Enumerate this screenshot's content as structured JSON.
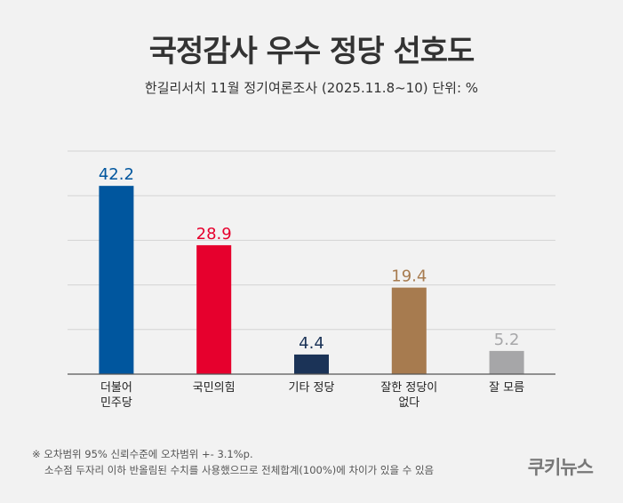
{
  "header": {
    "title": "국정감사 우수 정당 선호도",
    "subtitle": "한길리서치 11월 정기여론조사 (2025.11.8~10) 단위: %"
  },
  "chart_data": {
    "type": "bar",
    "categories": [
      [
        "더불어",
        "민주당"
      ],
      [
        "국민의힘"
      ],
      [
        "기타 정당"
      ],
      [
        "잘한 정당이",
        "없다"
      ],
      [
        "잘 모름"
      ]
    ],
    "values": [
      42.2,
      28.9,
      4.4,
      19.4,
      5.2
    ],
    "value_labels": [
      "42.2",
      "28.9",
      "4.4",
      "19.4",
      "5.2"
    ],
    "colors": [
      "#00569e",
      "#e6002d",
      "#1b3357",
      "#a77b4f",
      "#a6a6a8"
    ],
    "ylim": [
      0,
      50
    ],
    "grid": true
  },
  "footnotes": {
    "line1": "※ 오차범위 95% 신뢰수준에 오차범위 +- 3.1%p.",
    "line2": "소수점 두자리 이하 반올림된 수치를 사용했으므로 전체합계(100%)에 차이가 있을 수 있음"
  },
  "brand": {
    "logo_text": "쿠키뉴스"
  }
}
